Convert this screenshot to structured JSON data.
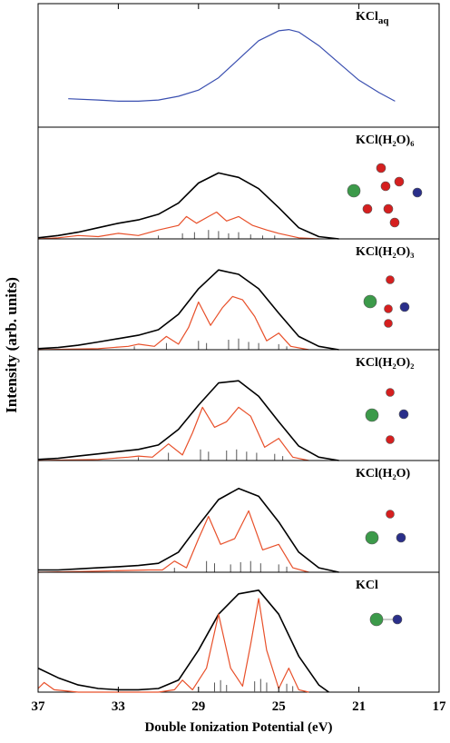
{
  "chart_data": {
    "type": "line",
    "xlabel": "Double Ionization Potential (eV)",
    "ylabel": "Intensity (arb. units)",
    "xlim": [
      37,
      17
    ],
    "xticks": [
      37,
      33,
      29,
      25,
      21,
      17
    ],
    "panels": [
      {
        "label": "KCl",
        "label_sub": "aq",
        "ylim": [
          0,
          1
        ],
        "series": [
          {
            "color": "#3a4fb0",
            "x": [
              35.5,
              34,
              33,
              32,
              31,
              30,
              29,
              28,
              27,
              26,
              25,
              24.5,
              24,
              23,
              22,
              21,
              20,
              19.2
            ],
            "values": [
              0.23,
              0.22,
              0.21,
              0.21,
              0.22,
              0.25,
              0.3,
              0.4,
              0.55,
              0.7,
              0.78,
              0.79,
              0.77,
              0.66,
              0.52,
              0.38,
              0.28,
              0.21
            ]
          }
        ]
      },
      {
        "label": "KCl(H₂O)₆",
        "ylim": [
          0,
          1
        ],
        "series": [
          {
            "color": "#000000",
            "x": [
              37,
              36,
              35,
              34,
              33,
              32,
              31,
              30,
              29,
              28,
              27,
              26,
              25,
              24,
              23,
              22
            ],
            "values": [
              0.01,
              0.03,
              0.06,
              0.1,
              0.14,
              0.17,
              0.22,
              0.32,
              0.5,
              0.59,
              0.55,
              0.45,
              0.28,
              0.1,
              0.02,
              0
            ]
          },
          {
            "color": "#e8502a",
            "x": [
              37,
              36,
              35,
              34,
              33,
              32,
              31,
              30,
              29.6,
              29.1,
              28.5,
              28.1,
              27.6,
              27,
              26.3,
              25.6,
              25,
              24,
              23
            ],
            "values": [
              0,
              0.01,
              0.03,
              0.02,
              0.05,
              0.03,
              0.08,
              0.12,
              0.2,
              0.14,
              0.2,
              0.24,
              0.16,
              0.2,
              0.12,
              0.08,
              0.05,
              0.01,
              0
            ]
          }
        ],
        "sticks": {
          "x": [
            31,
            29.8,
            29.2,
            28.5,
            28,
            27.5,
            27,
            26.4,
            25.8,
            25.2
          ],
          "values": [
            0.03,
            0.05,
            0.06,
            0.08,
            0.07,
            0.05,
            0.06,
            0.04,
            0.03,
            0.03
          ]
        }
      },
      {
        "label": "KCl(H₂O)₃",
        "ylim": [
          0,
          1
        ],
        "series": [
          {
            "color": "#000000",
            "x": [
              37,
              36,
              35,
              34,
              33,
              32,
              31,
              30,
              29,
              28,
              27,
              26,
              25,
              24,
              23,
              22
            ],
            "values": [
              0.01,
              0.02,
              0.04,
              0.07,
              0.1,
              0.13,
              0.18,
              0.32,
              0.55,
              0.72,
              0.68,
              0.55,
              0.33,
              0.12,
              0.03,
              0
            ]
          },
          {
            "color": "#e8502a",
            "x": [
              37,
              34,
              32.5,
              32,
              31.2,
              30.6,
              30,
              29.5,
              29,
              28.4,
              27.8,
              27.3,
              26.8,
              26.2,
              25.6,
              25,
              24.4,
              23.5
            ],
            "values": [
              0,
              0.01,
              0.03,
              0.05,
              0.03,
              0.12,
              0.05,
              0.2,
              0.43,
              0.22,
              0.38,
              0.48,
              0.45,
              0.3,
              0.08,
              0.15,
              0.03,
              0
            ]
          }
        ],
        "sticks": {
          "x": [
            32.2,
            30.6,
            29,
            28.6,
            27.5,
            27,
            26.5,
            26,
            25,
            24.6
          ],
          "values": [
            0.03,
            0.06,
            0.08,
            0.06,
            0.09,
            0.1,
            0.07,
            0.06,
            0.05,
            0.03
          ]
        }
      },
      {
        "label": "KCl(H₂O)₂",
        "ylim": [
          0,
          1
        ],
        "series": [
          {
            "color": "#000000",
            "x": [
              37,
              36,
              35,
              34,
              33,
              32,
              31,
              30,
              29,
              28,
              27,
              26,
              25,
              24,
              23,
              22
            ],
            "values": [
              0.01,
              0.02,
              0.04,
              0.06,
              0.08,
              0.1,
              0.14,
              0.28,
              0.5,
              0.7,
              0.72,
              0.58,
              0.35,
              0.13,
              0.03,
              0
            ]
          },
          {
            "color": "#e8502a",
            "x": [
              37,
              34,
              32.5,
              32,
              31.3,
              30.5,
              29.8,
              29.3,
              28.8,
              28.2,
              27.6,
              27,
              26.4,
              25.7,
              25,
              24.3,
              23.5
            ],
            "values": [
              0,
              0.01,
              0.03,
              0.04,
              0.03,
              0.15,
              0.05,
              0.25,
              0.48,
              0.3,
              0.35,
              0.48,
              0.4,
              0.12,
              0.2,
              0.03,
              0
            ]
          }
        ],
        "sticks": {
          "x": [
            32,
            30.5,
            28.9,
            28.5,
            27.6,
            27.1,
            26.6,
            26.1,
            25.2,
            24.8
          ],
          "values": [
            0.03,
            0.07,
            0.1,
            0.08,
            0.09,
            0.1,
            0.08,
            0.07,
            0.06,
            0.04
          ]
        }
      },
      {
        "label": "KCl(H₂O)",
        "ylim": [
          0,
          1
        ],
        "series": [
          {
            "color": "#000000",
            "x": [
              37,
              36,
              35,
              34,
              33,
              32,
              31,
              30,
              29,
              28,
              27,
              26,
              25,
              24,
              23,
              22
            ],
            "values": [
              0.02,
              0.02,
              0.03,
              0.04,
              0.05,
              0.06,
              0.08,
              0.18,
              0.42,
              0.65,
              0.75,
              0.68,
              0.45,
              0.18,
              0.04,
              0
            ]
          },
          {
            "color": "#e8502a",
            "x": [
              37,
              34,
              31.5,
              30.8,
              30.2,
              29.6,
              29,
              28.5,
              27.9,
              27.2,
              26.5,
              25.8,
              25,
              24.3,
              23.5
            ],
            "values": [
              0,
              0.01,
              0.02,
              0.02,
              0.1,
              0.04,
              0.3,
              0.5,
              0.25,
              0.3,
              0.55,
              0.2,
              0.25,
              0.04,
              0
            ]
          }
        ],
        "sticks": {
          "x": [
            30.2,
            28.6,
            28.2,
            27.4,
            26.9,
            26.4,
            25.9,
            25,
            24.6
          ],
          "values": [
            0.04,
            0.1,
            0.08,
            0.07,
            0.09,
            0.1,
            0.08,
            0.07,
            0.05
          ]
        }
      },
      {
        "label": "KCl",
        "ylim": [
          0,
          1
        ],
        "series": [
          {
            "color": "#000000",
            "x": [
              37,
              36,
              35,
              34,
              33,
              32,
              31,
              30,
              29,
              28,
              27,
              26,
              25,
              24,
              23,
              22.5
            ],
            "values": [
              0.2,
              0.12,
              0.06,
              0.03,
              0.02,
              0.02,
              0.03,
              0.1,
              0.35,
              0.65,
              0.82,
              0.85,
              0.65,
              0.3,
              0.06,
              0
            ]
          },
          {
            "color": "#e8502a",
            "x": [
              37,
              36.7,
              36.2,
              35,
              31,
              30.2,
              29.8,
              29.3,
              28.6,
              28,
              27.4,
              26.8,
              26.4,
              26,
              25.6,
              25,
              24.5,
              24,
              23.5
            ],
            "values": [
              0.03,
              0.08,
              0.02,
              0,
              0,
              0.02,
              0.1,
              0.02,
              0.2,
              0.65,
              0.2,
              0.05,
              0.4,
              0.78,
              0.35,
              0.03,
              0.2,
              0.02,
              0
            ]
          }
        ],
        "sticks": {
          "x": [
            28.2,
            27.9,
            27.6,
            26.2,
            25.9,
            25.6,
            24.6,
            24.3
          ],
          "values": [
            0.08,
            0.1,
            0.06,
            0.09,
            0.11,
            0.08,
            0.07,
            0.05
          ]
        }
      }
    ]
  }
}
